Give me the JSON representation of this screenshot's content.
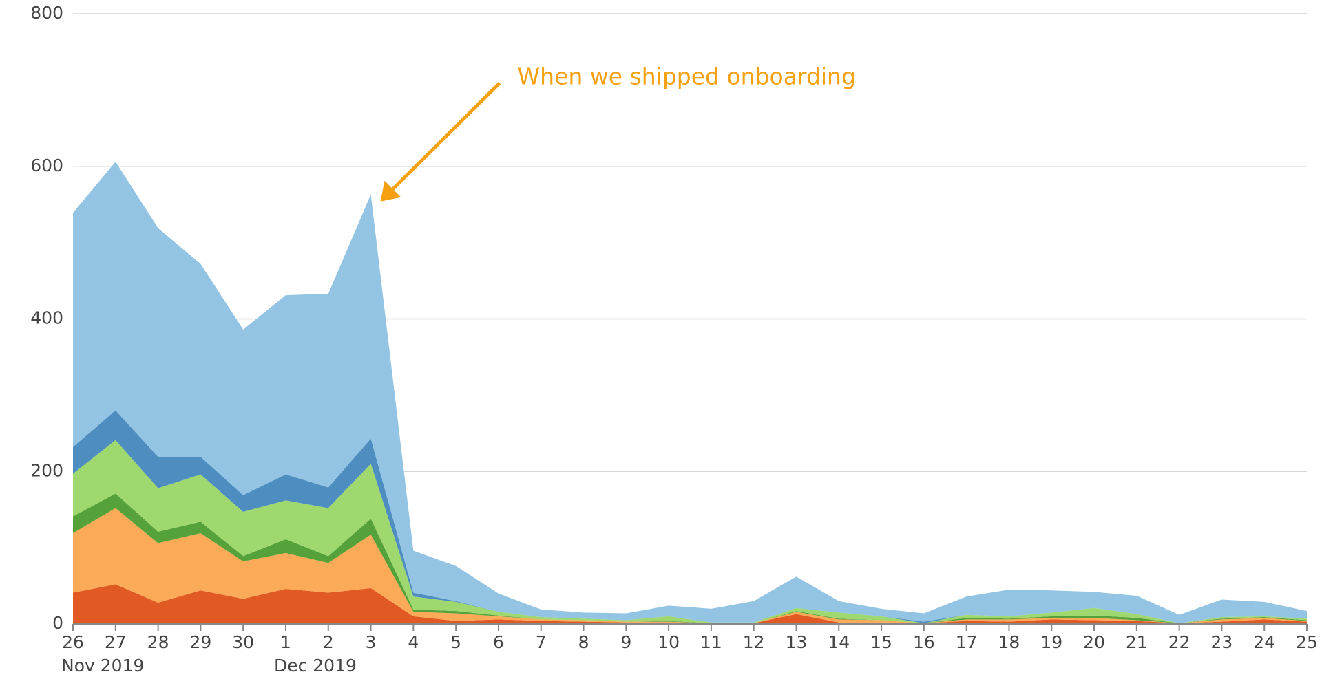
{
  "chart_data": {
    "type": "stacked_area",
    "categories": [
      "26",
      "27",
      "28",
      "29",
      "30",
      "1",
      "2",
      "3",
      "4",
      "5",
      "6",
      "7",
      "8",
      "9",
      "10",
      "11",
      "12",
      "13",
      "14",
      "15",
      "16",
      "17",
      "18",
      "19",
      "20",
      "21",
      "22",
      "23",
      "24",
      "25"
    ],
    "category_groups": [
      {
        "label": "Nov 2019",
        "start": "26"
      },
      {
        "label": "Dec 2019",
        "start": "1"
      }
    ],
    "series": [
      {
        "color": "#e25a23",
        "values": [
          41,
          52,
          28,
          44,
          33,
          46,
          41,
          47,
          10,
          4,
          6,
          4,
          3,
          2,
          2,
          1,
          1,
          13,
          2,
          2,
          1,
          4,
          3,
          6,
          5,
          4,
          1,
          3,
          6,
          3
        ]
      },
      {
        "color": "#fbab58",
        "values": [
          78,
          100,
          78,
          75,
          49,
          47,
          39,
          70,
          6,
          10,
          4,
          2,
          2,
          1,
          1,
          0,
          0,
          3,
          4,
          3,
          0,
          2,
          3,
          2,
          3,
          1,
          0,
          3,
          2,
          1
        ]
      },
      {
        "color": "#56a23a",
        "values": [
          22,
          19,
          15,
          15,
          7,
          18,
          9,
          21,
          3,
          3,
          1,
          0,
          0,
          0,
          1,
          0,
          0,
          1,
          1,
          0,
          0,
          2,
          1,
          2,
          3,
          3,
          0,
          1,
          1,
          1
        ]
      },
      {
        "color": "#9fd86f",
        "values": [
          56,
          70,
          57,
          62,
          58,
          51,
          63,
          72,
          17,
          12,
          5,
          3,
          2,
          2,
          6,
          1,
          1,
          4,
          8,
          5,
          0,
          4,
          3,
          5,
          10,
          5,
          0,
          2,
          1,
          2
        ]
      },
      {
        "color": "#4e8dbf",
        "values": [
          35,
          39,
          41,
          23,
          22,
          34,
          27,
          33,
          5,
          1,
          0,
          0,
          0,
          0,
          0,
          0,
          0,
          0,
          0,
          0,
          2,
          0,
          0,
          0,
          0,
          0,
          0,
          0,
          0,
          0
        ]
      },
      {
        "color": "#93c4e4",
        "values": [
          307,
          326,
          300,
          253,
          217,
          235,
          254,
          320,
          55,
          46,
          24,
          10,
          8,
          9,
          14,
          18,
          28,
          41,
          15,
          10,
          11,
          24,
          35,
          29,
          21,
          24,
          11,
          23,
          19,
          10
        ]
      }
    ],
    "ylim": [
      0,
      800
    ],
    "yticks": [
      0,
      200,
      400,
      600,
      800
    ],
    "grid": true,
    "annotation": {
      "text": "When we shipped onboarding",
      "category": "3",
      "color": "#f5a00f"
    }
  }
}
